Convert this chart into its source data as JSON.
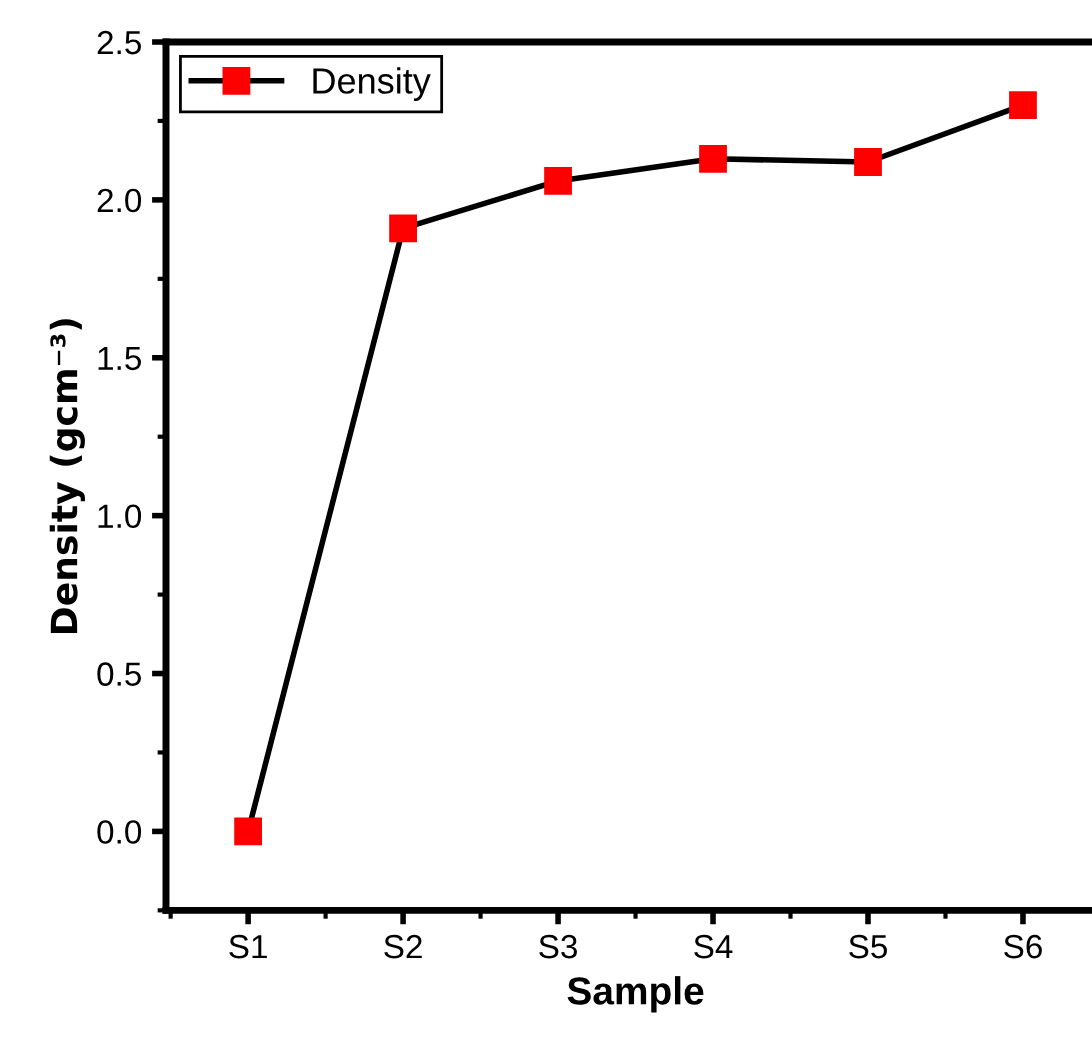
{
  "chart_data": {
    "type": "line",
    "xlabel": "Sample",
    "ylabel": "Density (gcm⁻³)",
    "categories": [
      "S1",
      "S2",
      "S3",
      "S4",
      "S5",
      "S6"
    ],
    "series": [
      {
        "name": "Density",
        "color": "#ff0000",
        "values": [
          0.0,
          1.91,
          2.06,
          2.13,
          2.12,
          2.3
        ]
      }
    ],
    "ylim": [
      -0.25,
      2.5
    ],
    "yticks": [
      {
        "value": 0,
        "label": "0.0"
      },
      {
        "value": 0.5,
        "label": "0.5"
      },
      {
        "value": 1.0,
        "label": "1.0"
      },
      {
        "value": 1.5,
        "label": "1.5"
      },
      {
        "value": 2.0,
        "label": "2.0"
      },
      {
        "value": 2.5,
        "label": "2.5"
      }
    ],
    "marker": "square",
    "line_style": "solid",
    "legend": "top left",
    "grid": false
  }
}
